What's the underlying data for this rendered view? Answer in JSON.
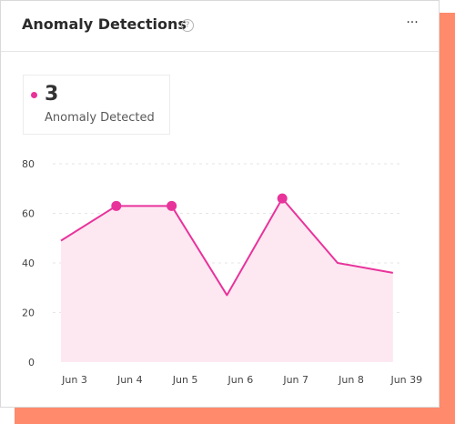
{
  "widget": {
    "title": "Anomaly Detections",
    "help_icon": "question-circle-icon",
    "help_glyph": "?",
    "more_icon": "ellipsis-icon",
    "more_glyph": "···"
  },
  "summary": {
    "value": "3",
    "label": "Anomaly Detected"
  },
  "colors": {
    "line": "#e8339b",
    "fill": "#fde8f2",
    "accent_shadow": "#ff8a6c"
  },
  "chart_data": {
    "type": "area",
    "categories": [
      "Jun 3",
      "Jun 4",
      "Jun 5",
      "Jun 6",
      "Jun 7",
      "Jun 8",
      "Jun 39"
    ],
    "series": [
      {
        "values": [
          49,
          63,
          63,
          27,
          66,
          40,
          36
        ]
      }
    ],
    "anomalies": [
      1,
      2,
      4
    ],
    "yticks": [
      0,
      20,
      40,
      60,
      80
    ],
    "ylim": [
      0,
      80
    ],
    "grid": true
  }
}
